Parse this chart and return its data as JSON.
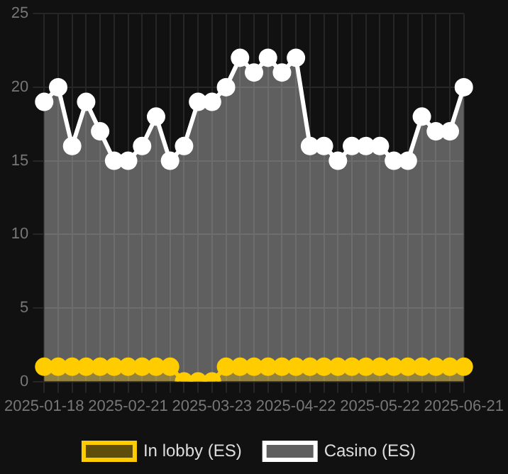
{
  "chart_data": {
    "type": "area",
    "categories": [
      "2025-01-18",
      null,
      null,
      null,
      null,
      null,
      "2025-02-21",
      null,
      null,
      null,
      null,
      null,
      "2025-03-23",
      null,
      null,
      null,
      null,
      null,
      "2025-04-22",
      null,
      null,
      null,
      null,
      null,
      "2025-05-22",
      null,
      null,
      null,
      null,
      null,
      "2025-06-21"
    ],
    "series": [
      {
        "name": "In lobby (ES)",
        "color": "#ffcc00",
        "values": [
          1,
          1,
          1,
          1,
          1,
          1,
          1,
          1,
          1,
          1,
          0,
          0,
          0,
          1,
          1,
          1,
          1,
          1,
          1,
          1,
          1,
          1,
          1,
          1,
          1,
          1,
          1,
          1,
          1,
          1,
          1
        ]
      },
      {
        "name": "Casino (ES)",
        "color": "#ffffff",
        "values": [
          19,
          20,
          16,
          19,
          17,
          15,
          15,
          16,
          18,
          15,
          16,
          19,
          19,
          20,
          22,
          21,
          22,
          21,
          22,
          16,
          16,
          15,
          16,
          16,
          16,
          15,
          15,
          18,
          17,
          17,
          20
        ]
      }
    ],
    "ylim": [
      0,
      25
    ],
    "yticks": [
      0,
      5,
      10,
      15,
      20,
      25
    ],
    "grid": true,
    "legend": "bottom",
    "marker": "circle"
  }
}
